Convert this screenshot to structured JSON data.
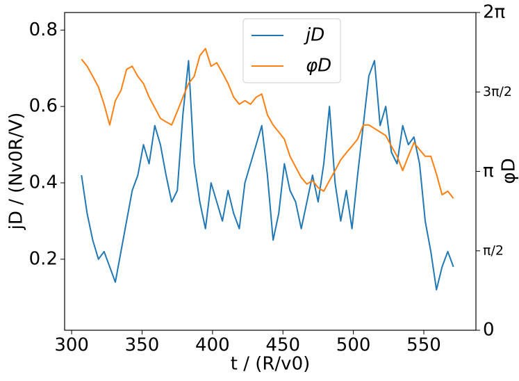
{
  "chart_data": {
    "type": "line",
    "x_label": "t / (R/v0)",
    "y_label": "jD / (Nv0R/V)",
    "y2_label": "φD",
    "x": [
      307,
      311,
      315,
      319,
      323,
      327,
      331,
      335,
      339,
      343,
      347,
      351,
      355,
      359,
      363,
      367,
      371,
      375,
      379,
      383,
      387,
      391,
      395,
      399,
      403,
      407,
      411,
      415,
      419,
      423,
      427,
      431,
      435,
      439,
      443,
      447,
      451,
      455,
      459,
      463,
      467,
      471,
      475,
      479,
      483,
      487,
      491,
      495,
      499,
      503,
      507,
      511,
      515,
      519,
      523,
      527,
      531,
      535,
      539,
      543,
      547,
      551,
      555,
      559,
      563,
      567,
      571
    ],
    "series": [
      {
        "name": "jD",
        "color": "#1f77b4",
        "values": [
          0.42,
          0.32,
          0.25,
          0.2,
          0.22,
          0.18,
          0.14,
          0.22,
          0.3,
          0.38,
          0.42,
          0.5,
          0.45,
          0.55,
          0.5,
          0.42,
          0.35,
          0.38,
          0.58,
          0.72,
          0.45,
          0.35,
          0.28,
          0.4,
          0.35,
          0.3,
          0.38,
          0.32,
          0.28,
          0.4,
          0.45,
          0.5,
          0.55,
          0.42,
          0.25,
          0.32,
          0.45,
          0.38,
          0.35,
          0.28,
          0.35,
          0.42,
          0.35,
          0.45,
          0.6,
          0.4,
          0.3,
          0.38,
          0.28,
          0.42,
          0.55,
          0.68,
          0.72,
          0.55,
          0.6,
          0.48,
          0.45,
          0.55,
          0.5,
          0.52,
          0.45,
          0.3,
          0.22,
          0.12,
          0.18,
          0.22,
          0.18
        ]
      },
      {
        "name": "φD",
        "color": "#ff7f0e",
        "axis": "y2",
        "values": [
          5.36,
          5.22,
          5.02,
          4.81,
          4.47,
          4.06,
          4.54,
          4.74,
          5.16,
          5.22,
          5.02,
          4.88,
          4.61,
          4.4,
          4.19,
          4.12,
          4.06,
          4.33,
          4.61,
          4.88,
          5.02,
          5.43,
          5.57,
          5.22,
          5.29,
          5.09,
          4.88,
          4.61,
          4.47,
          4.54,
          4.47,
          4.61,
          4.67,
          4.26,
          4.06,
          3.92,
          3.78,
          3.44,
          3.23,
          3.02,
          2.89,
          2.96,
          2.82,
          2.75,
          2.96,
          3.16,
          3.37,
          3.51,
          3.64,
          3.78,
          4.06,
          4.06,
          3.99,
          3.92,
          3.85,
          3.64,
          3.44,
          3.16,
          3.44,
          3.71,
          3.57,
          3.44,
          3.44,
          3.09,
          2.68,
          2.75,
          2.61
        ]
      }
    ],
    "xlim": [
      295,
      587
    ],
    "xticks": [
      300,
      350,
      400,
      450,
      500,
      550
    ],
    "ylim": [
      0.014,
      0.846
    ],
    "yticks": [
      0.2,
      0.4,
      0.6,
      0.8
    ],
    "y2lim": [
      0,
      6.2832
    ],
    "y2ticks": [
      0,
      {
        "value": 1.5708,
        "label": "π/2"
      },
      {
        "value": 3.1416,
        "label": "π"
      },
      {
        "value": 4.7124,
        "label": "3π/2"
      },
      {
        "value": 6.2832,
        "label": "2π"
      }
    ],
    "legend": "upper center"
  }
}
